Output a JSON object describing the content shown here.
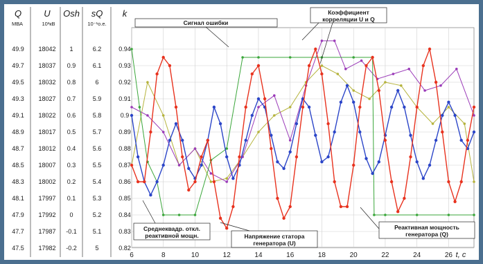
{
  "chart_data": {
    "type": "line",
    "headers": {
      "q": "Q",
      "q_unit": "МВА",
      "u": "U",
      "u_unit": "10³кВ",
      "osh": "Osh",
      "sq": "sQ",
      "sq_unit": "10⁻¹о.е.",
      "k": "k"
    },
    "left_scales": {
      "Q": [
        "49.9",
        "49.7",
        "49.5",
        "49.3",
        "49.1",
        "48.9",
        "48.7",
        "48.5",
        "48.3",
        "48.1",
        "47.9",
        "47.7",
        "47.5"
      ],
      "U": [
        "18042",
        "18037",
        "18032",
        "18027",
        "18022",
        "18017",
        "18012",
        "18007",
        "18002",
        "17997",
        "17992",
        "17987",
        "17982"
      ],
      "Osh": [
        "1",
        "0.9",
        "0.8",
        "0.7",
        "0.6",
        "0.5",
        "0.4",
        "0.3",
        "0.2",
        "0.1",
        "0",
        "-0.1",
        "-0.2"
      ],
      "sQ": [
        "6.2",
        "6.1",
        "6",
        "5.9",
        "5.8",
        "5.7",
        "5.6",
        "5.5",
        "5.4",
        "5.3",
        "5.2",
        "5.1",
        "5"
      ]
    },
    "y_ticks": [
      "0.94",
      "0.93",
      "0.92",
      "0.91",
      "0.9",
      "0.89",
      "0.88",
      "0.87",
      "0.86",
      "0.85",
      "0.84",
      "0.83",
      "0.82"
    ],
    "ylim": [
      0.82,
      0.94
    ],
    "x_ticks": [
      "6",
      "8",
      "10",
      "12",
      "14",
      "16",
      "18",
      "20",
      "22",
      "24",
      "26"
    ],
    "xlim": [
      6,
      27.6
    ],
    "xlabel": "t, c",
    "annotations": {
      "error_signal": "Сигнал ошибки",
      "corr1": "Коэффициент",
      "corr2": "корреляции U и Q",
      "rms1": "Среднеквадр. откл.",
      "rms2": "реактивной мощн.",
      "stator1": "Напряжение статора",
      "stator2": "генератора (U)",
      "reactive1": "Реактивная мощность",
      "reactive2": "генератора (Q)"
    },
    "series": [
      {
        "key": "Q",
        "color": "#e8321e",
        "x": [
          6.0,
          6.4,
          6.8,
          7.2,
          7.6,
          8.0,
          8.4,
          8.8,
          9.2,
          9.6,
          10.0,
          10.4,
          10.8,
          11.2,
          11.6,
          12.0,
          12.4,
          12.8,
          13.2,
          13.6,
          14.0,
          14.4,
          14.8,
          15.2,
          15.6,
          16.0,
          16.4,
          16.8,
          17.2,
          17.6,
          18.0,
          18.4,
          18.8,
          19.2,
          19.6,
          20.0,
          20.4,
          20.8,
          21.2,
          21.6,
          22.0,
          22.4,
          22.8,
          23.2,
          23.6,
          24.0,
          24.4,
          24.8,
          25.2,
          25.6,
          26.0,
          26.4,
          26.8,
          27.2,
          27.6
        ],
        "values": [
          0.87,
          0.86,
          0.86,
          0.89,
          0.925,
          0.935,
          0.93,
          0.905,
          0.875,
          0.855,
          0.86,
          0.875,
          0.885,
          0.86,
          0.838,
          0.832,
          0.845,
          0.875,
          0.905,
          0.925,
          0.93,
          0.91,
          0.88,
          0.85,
          0.838,
          0.845,
          0.875,
          0.905,
          0.93,
          0.94,
          0.925,
          0.895,
          0.86,
          0.845,
          0.845,
          0.87,
          0.905,
          0.93,
          0.935,
          0.915,
          0.885,
          0.86,
          0.842,
          0.85,
          0.875,
          0.905,
          0.93,
          0.94,
          0.92,
          0.89,
          0.86,
          0.848,
          0.86,
          0.885,
          0.905
        ]
      },
      {
        "key": "U",
        "color": "#2b45c8",
        "x": [
          6.0,
          6.4,
          6.8,
          7.2,
          7.6,
          8.0,
          8.4,
          8.8,
          9.2,
          9.6,
          10.0,
          10.4,
          10.8,
          11.2,
          11.6,
          12.0,
          12.4,
          12.8,
          13.2,
          13.6,
          14.0,
          14.4,
          14.8,
          15.2,
          15.6,
          16.0,
          16.4,
          16.8,
          17.2,
          17.6,
          18.0,
          18.4,
          18.8,
          19.2,
          19.6,
          20.0,
          20.4,
          20.8,
          21.2,
          21.6,
          22.0,
          22.4,
          22.8,
          23.2,
          23.6,
          24.0,
          24.4,
          24.8,
          25.2,
          25.6,
          26.0,
          26.4,
          26.8,
          27.2,
          27.6
        ],
        "values": [
          0.9,
          0.875,
          0.86,
          0.852,
          0.86,
          0.87,
          0.885,
          0.895,
          0.885,
          0.868,
          0.862,
          0.87,
          0.885,
          0.905,
          0.895,
          0.875,
          0.862,
          0.87,
          0.885,
          0.9,
          0.91,
          0.905,
          0.888,
          0.872,
          0.868,
          0.878,
          0.895,
          0.91,
          0.905,
          0.888,
          0.872,
          0.875,
          0.89,
          0.908,
          0.918,
          0.908,
          0.89,
          0.874,
          0.865,
          0.872,
          0.888,
          0.905,
          0.915,
          0.905,
          0.888,
          0.872,
          0.862,
          0.87,
          0.885,
          0.9,
          0.908,
          0.9,
          0.885,
          0.88,
          0.89
        ]
      },
      {
        "key": "Osh",
        "color": "#3aa63a",
        "x": [
          6.0,
          6.5,
          7.0,
          7.6,
          8.0,
          9.0,
          10.0,
          11.0,
          12.0,
          13.0,
          14.0,
          16.0,
          18.0,
          20.0,
          21.2,
          21.3,
          22.0,
          24.0,
          26.0,
          27.6
        ],
        "values": [
          0.94,
          0.905,
          0.872,
          0.86,
          0.84,
          0.84,
          0.84,
          0.873,
          0.88,
          0.935,
          0.935,
          0.935,
          0.935,
          0.935,
          0.935,
          0.84,
          0.84,
          0.84,
          0.84,
          0.84
        ]
      },
      {
        "key": "k",
        "color": "#9a3ab8",
        "x": [
          6.0,
          7.0,
          8.0,
          9.0,
          10.0,
          11.0,
          12.0,
          13.0,
          14.0,
          15.0,
          16.0,
          17.0,
          18.0,
          18.8,
          19.5,
          20.5,
          21.5,
          22.5,
          23.5,
          24.5,
          25.5,
          26.5,
          27.6
        ],
        "values": [
          0.905,
          0.9,
          0.89,
          0.87,
          0.88,
          0.865,
          0.86,
          0.875,
          0.905,
          0.912,
          0.885,
          0.918,
          0.945,
          0.945,
          0.928,
          0.933,
          0.922,
          0.925,
          0.928,
          0.915,
          0.918,
          0.928,
          0.9
        ]
      },
      {
        "key": "sQ",
        "color": "#b5b33c",
        "x": [
          6.0,
          7.0,
          8.0,
          9.0,
          10.0,
          11.0,
          12.0,
          13.0,
          14.0,
          15.0,
          16.0,
          17.0,
          18.0,
          19.0,
          20.0,
          21.0,
          22.0,
          23.0,
          24.0,
          25.0,
          26.0,
          27.0,
          27.6
        ],
        "values": [
          0.87,
          0.92,
          0.9,
          0.87,
          0.88,
          0.86,
          0.862,
          0.875,
          0.89,
          0.9,
          0.905,
          0.92,
          0.93,
          0.925,
          0.915,
          0.91,
          0.92,
          0.918,
          0.905,
          0.895,
          0.905,
          0.895,
          0.86
        ]
      }
    ],
    "grid": true
  }
}
